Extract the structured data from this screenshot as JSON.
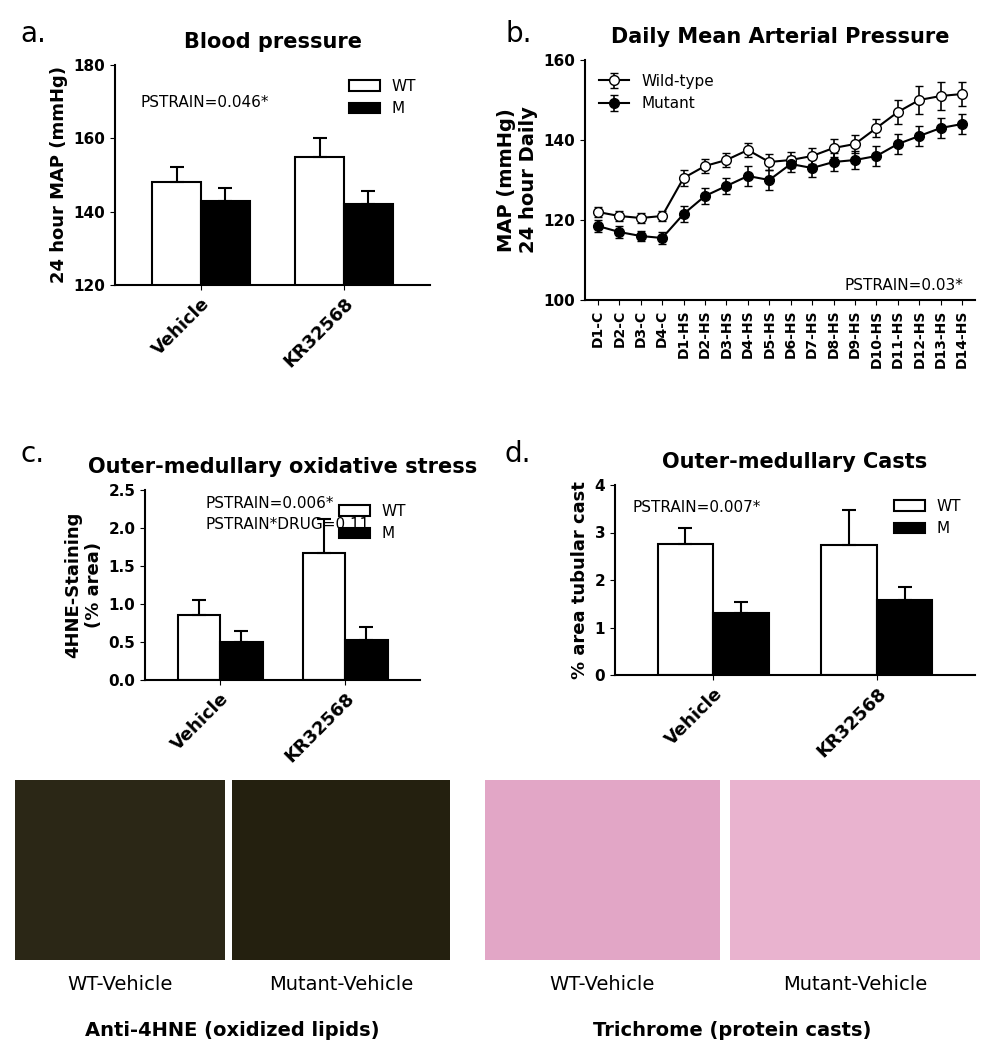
{
  "chart_data": [
    {
      "type": "bar",
      "panel_label": "a.",
      "title": "Blood pressure",
      "y_label": "24 hour MAP (mmHg)",
      "categories": [
        "Vehicle",
        "KR32568"
      ],
      "series": [
        {
          "name": "WT",
          "color": "#ffffff",
          "values": [
            148,
            155
          ],
          "errors": [
            4.2,
            5.0
          ]
        },
        {
          "name": "M",
          "color": "#000000",
          "values": [
            143,
            142
          ],
          "errors": [
            3.5,
            3.5
          ]
        }
      ],
      "ylim": [
        120,
        180
      ],
      "yticks": [
        120,
        140,
        160,
        180
      ],
      "annotations": [
        "PSTRAIN=0.046*"
      ],
      "legend": "upper right"
    },
    {
      "type": "line",
      "panel_label": "b.",
      "title": "Daily Mean Arterial Pressure",
      "y_label": "MAP (mmHg)\n24 hour Daily",
      "categories": [
        "D1-C",
        "D2-C",
        "D3-C",
        "D4-C",
        "D1-HS",
        "D2-HS",
        "D3-HS",
        "D4-HS",
        "D5-HS",
        "D6-HS",
        "D7-HS",
        "D8-HS",
        "D9-HS",
        "D10-HS",
        "D11-HS",
        "D12-HS",
        "D13-HS",
        "D14-HS"
      ],
      "series": [
        {
          "name": "Wild-type",
          "color": "#000000",
          "marker": "open-circle",
          "values": [
            122,
            121,
            120.5,
            121,
            130.5,
            133.5,
            135,
            137.5,
            134.5,
            135,
            136,
            138,
            139,
            143,
            147,
            150,
            151,
            151.5
          ],
          "errors": [
            1.2,
            1.2,
            1.2,
            1.2,
            2.0,
            1.8,
            1.8,
            1.8,
            2.0,
            2.0,
            2.0,
            2.2,
            2.2,
            2.2,
            3.0,
            3.5,
            3.5,
            3.0
          ]
        },
        {
          "name": "Mutant",
          "color": "#000000",
          "marker": "circle",
          "values": [
            118.5,
            117,
            116,
            115.5,
            121.5,
            126,
            128.5,
            131,
            130,
            134,
            133,
            134.5,
            135,
            136,
            139,
            141,
            143,
            144
          ],
          "errors": [
            1.5,
            1.5,
            1.2,
            1.5,
            2.0,
            2.0,
            2.0,
            2.5,
            2.5,
            2.0,
            2.2,
            2.2,
            2.2,
            2.5,
            2.5,
            2.5,
            2.5,
            2.5
          ]
        }
      ],
      "ylim": [
        100,
        160
      ],
      "yticks": [
        100,
        120,
        140,
        160
      ],
      "annotations": [
        "PSTRAIN=0.03*"
      ],
      "legend": "upper left"
    },
    {
      "type": "bar",
      "panel_label": "c.",
      "title": "Outer-medullary oxidative stress",
      "y_label": "4HNE-Staining\n(% area)",
      "categories": [
        "Vehicle",
        "KR32568"
      ],
      "series": [
        {
          "name": "WT",
          "color": "#ffffff",
          "values": [
            0.85,
            1.67
          ],
          "errors": [
            0.2,
            0.45
          ]
        },
        {
          "name": "M",
          "color": "#000000",
          "values": [
            0.5,
            0.52
          ],
          "errors": [
            0.15,
            0.18
          ]
        }
      ],
      "ylim": [
        0,
        2.5
      ],
      "yticks": [
        {
          "value": 0,
          "label": "0.0"
        },
        0.5,
        {
          "value": 1,
          "label": "1.0"
        },
        1.5,
        {
          "value": 2,
          "label": "2.0"
        },
        2.5
      ],
      "annotations": [
        "PSTRAIN=0.006*",
        "PSTRAIN*DRUG=0.11"
      ],
      "legend": "upper right"
    },
    {
      "type": "bar",
      "panel_label": "d.",
      "title": "Outer-medullary Casts",
      "y_label": "% area tubular cast",
      "categories": [
        "Vehicle",
        "KR32568"
      ],
      "series": [
        {
          "name": "WT",
          "color": "#ffffff",
          "values": [
            2.75,
            2.73
          ],
          "errors": [
            0.35,
            0.75
          ]
        },
        {
          "name": "M",
          "color": "#000000",
          "values": [
            1.3,
            1.57
          ],
          "errors": [
            0.23,
            0.28
          ]
        }
      ],
      "ylim": [
        0,
        4
      ],
      "yticks": [
        0,
        1,
        2,
        3,
        4
      ],
      "annotations": [
        "PSTRAIN=0.007*"
      ],
      "legend": "upper right"
    }
  ],
  "image_groups": [
    {
      "title": "Anti-4HNE (oxidized lipids)",
      "captions": [
        "WT-Vehicle",
        "Mutant-Vehicle"
      ]
    },
    {
      "title": "Trichrome (protein casts)",
      "captions": [
        "WT-Vehicle",
        "Mutant-Vehicle"
      ]
    }
  ]
}
